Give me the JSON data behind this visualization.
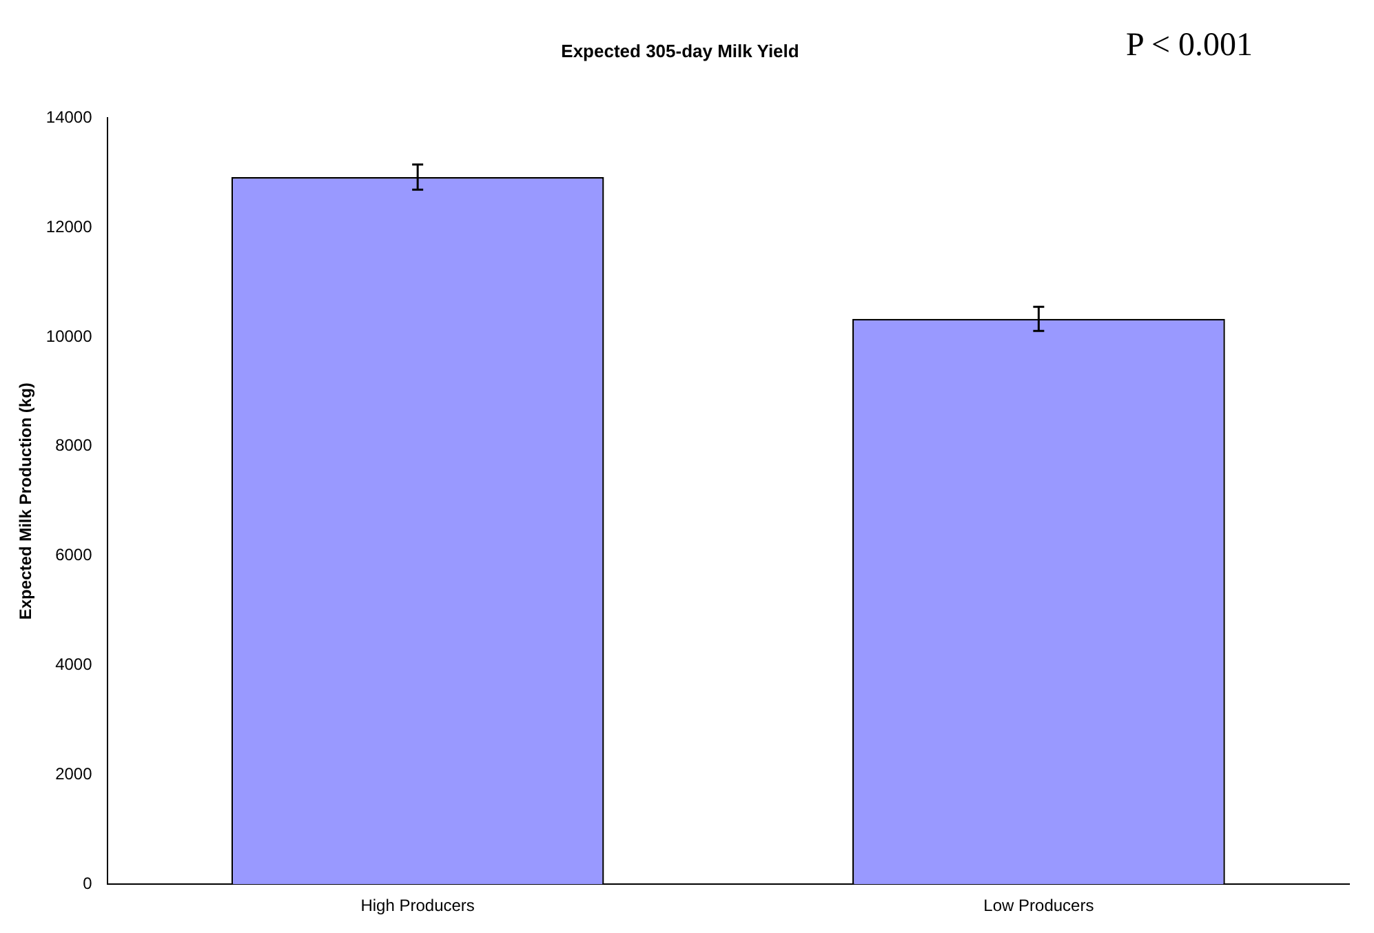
{
  "chart_data": {
    "type": "bar",
    "title": "Expected 305-day Milk Yield",
    "ylabel": "Expected Milk Production (kg)",
    "categories": [
      "High Producers",
      "Low Producers"
    ],
    "values": [
      12920,
      10330
    ],
    "errors": [
      230,
      220
    ],
    "color": "#9999ff",
    "ylim": [
      0,
      14000
    ],
    "yticks": [
      0,
      2000,
      4000,
      6000,
      8000,
      10000,
      12000,
      14000
    ],
    "grid": false,
    "legend": false,
    "annotations": [
      "P < 0.001"
    ]
  }
}
